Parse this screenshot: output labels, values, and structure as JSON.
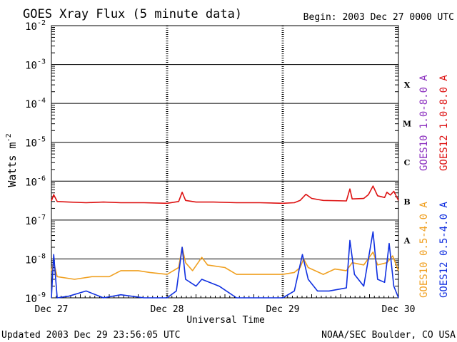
{
  "chart_data": {
    "type": "line",
    "title": "GOES Xray Flux (5 minute data)",
    "begin": "Begin:  2003 Dec 27 0000 UTC",
    "ylabel": "Watts m",
    "ylabel_sup": "-2",
    "xlabel": "Universal Time",
    "yscale": "log",
    "ylim": [
      1e-09,
      0.01
    ],
    "xlim": [
      0,
      3
    ],
    "y_ticks": [
      {
        "base": "10",
        "exp": "-2",
        "value": 0.01
      },
      {
        "base": "10",
        "exp": "-3",
        "value": 0.001
      },
      {
        "base": "10",
        "exp": "-4",
        "value": 0.0001
      },
      {
        "base": "10",
        "exp": "-5",
        "value": 1e-05
      },
      {
        "base": "10",
        "exp": "-6",
        "value": 1e-06
      },
      {
        "base": "10",
        "exp": "-7",
        "value": 1e-07
      },
      {
        "base": "10",
        "exp": "-8",
        "value": 1e-08
      },
      {
        "base": "10",
        "exp": "-9",
        "value": 1e-09
      }
    ],
    "x_ticks": [
      {
        "label": "Dec 27",
        "value": 0
      },
      {
        "label": "Dec 28",
        "value": 1
      },
      {
        "label": "Dec 29",
        "value": 2
      },
      {
        "label": "Dec 30",
        "value": 3
      }
    ],
    "flare_classes": [
      {
        "label": "X",
        "value": 0.0003
      },
      {
        "label": "M",
        "value": 3e-05
      },
      {
        "label": "C",
        "value": 3e-06
      },
      {
        "label": "B",
        "value": 3e-07
      },
      {
        "label": "A",
        "value": 3e-08
      }
    ],
    "grid": true,
    "series": [
      {
        "name": "GOES10 1.0-8.0 A",
        "color": "#8b2fbf",
        "points": []
      },
      {
        "name": "GOES12 1.0-8.0 A",
        "color": "#dd1111",
        "points": [
          [
            0.0,
            3.1e-07
          ],
          [
            0.02,
            4.5e-07
          ],
          [
            0.05,
            3e-07
          ],
          [
            0.15,
            2.9e-07
          ],
          [
            0.3,
            2.8e-07
          ],
          [
            0.45,
            2.9e-07
          ],
          [
            0.6,
            2.8e-07
          ],
          [
            0.8,
            2.8e-07
          ],
          [
            1.0,
            2.7e-07
          ],
          [
            1.1,
            3e-07
          ],
          [
            1.13,
            5.2e-07
          ],
          [
            1.16,
            3.2e-07
          ],
          [
            1.25,
            2.9e-07
          ],
          [
            1.4,
            2.9e-07
          ],
          [
            1.6,
            2.8e-07
          ],
          [
            1.8,
            2.8e-07
          ],
          [
            2.0,
            2.7e-07
          ],
          [
            2.1,
            2.8e-07
          ],
          [
            2.15,
            3.2e-07
          ],
          [
            2.2,
            4.6e-07
          ],
          [
            2.25,
            3.6e-07
          ],
          [
            2.35,
            3.2e-07
          ],
          [
            2.55,
            3.1e-07
          ],
          [
            2.58,
            6.3e-07
          ],
          [
            2.6,
            3.5e-07
          ],
          [
            2.7,
            3.6e-07
          ],
          [
            2.74,
            4.5e-07
          ],
          [
            2.78,
            7.5e-07
          ],
          [
            2.82,
            4.2e-07
          ],
          [
            2.88,
            3.8e-07
          ],
          [
            2.9,
            5.2e-07
          ],
          [
            2.93,
            4.4e-07
          ],
          [
            2.96,
            5.5e-07
          ],
          [
            3.0,
            3.2e-07
          ]
        ]
      },
      {
        "name": "GOES10 0.5-4.0 A",
        "color": "#f0a020",
        "points": [
          [
            0.0,
            5e-09
          ],
          [
            0.02,
            8e-09
          ],
          [
            0.05,
            3.5e-09
          ],
          [
            0.2,
            3e-09
          ],
          [
            0.35,
            3.5e-09
          ],
          [
            0.5,
            3.5e-09
          ],
          [
            0.6,
            5e-09
          ],
          [
            0.75,
            5e-09
          ],
          [
            0.85,
            4.5e-09
          ],
          [
            1.0,
            4e-09
          ],
          [
            1.1,
            6e-09
          ],
          [
            1.13,
            2e-08
          ],
          [
            1.16,
            8e-09
          ],
          [
            1.22,
            5e-09
          ],
          [
            1.3,
            1.1e-08
          ],
          [
            1.35,
            7e-09
          ],
          [
            1.5,
            6e-09
          ],
          [
            1.6,
            4e-09
          ],
          [
            1.8,
            4e-09
          ],
          [
            2.0,
            4e-09
          ],
          [
            2.1,
            4.5e-09
          ],
          [
            2.15,
            6e-09
          ],
          [
            2.18,
            1e-08
          ],
          [
            2.22,
            6e-09
          ],
          [
            2.35,
            4e-09
          ],
          [
            2.45,
            5.5e-09
          ],
          [
            2.55,
            5e-09
          ],
          [
            2.6,
            8e-09
          ],
          [
            2.7,
            7e-09
          ],
          [
            2.78,
            1.5e-08
          ],
          [
            2.82,
            7e-09
          ],
          [
            2.9,
            8e-09
          ],
          [
            2.95,
            1.2e-08
          ],
          [
            3.0,
            5e-09
          ]
        ]
      },
      {
        "name": "GOES12 0.5-4.0 A",
        "color": "#1030e0",
        "points": [
          [
            0.0,
            1e-09
          ],
          [
            0.02,
            1.3e-08
          ],
          [
            0.05,
            1e-09
          ],
          [
            0.15,
            1.1e-09
          ],
          [
            0.3,
            1.5e-09
          ],
          [
            0.45,
            1e-09
          ],
          [
            0.6,
            1.2e-09
          ],
          [
            0.8,
            1e-09
          ],
          [
            1.0,
            1e-09
          ],
          [
            1.08,
            1.5e-09
          ],
          [
            1.13,
            2e-08
          ],
          [
            1.16,
            3e-09
          ],
          [
            1.25,
            2e-09
          ],
          [
            1.3,
            3e-09
          ],
          [
            1.45,
            2e-09
          ],
          [
            1.6,
            1e-09
          ],
          [
            1.8,
            1e-09
          ],
          [
            2.0,
            1e-09
          ],
          [
            2.1,
            1.5e-09
          ],
          [
            2.17,
            1.3e-08
          ],
          [
            2.22,
            3e-09
          ],
          [
            2.3,
            1.5e-09
          ],
          [
            2.4,
            1.5e-09
          ],
          [
            2.55,
            1.8e-09
          ],
          [
            2.58,
            3e-08
          ],
          [
            2.62,
            4e-09
          ],
          [
            2.7,
            2e-09
          ],
          [
            2.78,
            5e-08
          ],
          [
            2.82,
            3e-09
          ],
          [
            2.88,
            2.5e-09
          ],
          [
            2.92,
            2.5e-08
          ],
          [
            2.96,
            2e-09
          ],
          [
            3.0,
            1e-09
          ]
        ]
      }
    ]
  },
  "footer": {
    "updated": "Updated 2003 Dec 29 23:56:05 UTC",
    "credit": "NOAA/SEC Boulder, CO USA"
  }
}
